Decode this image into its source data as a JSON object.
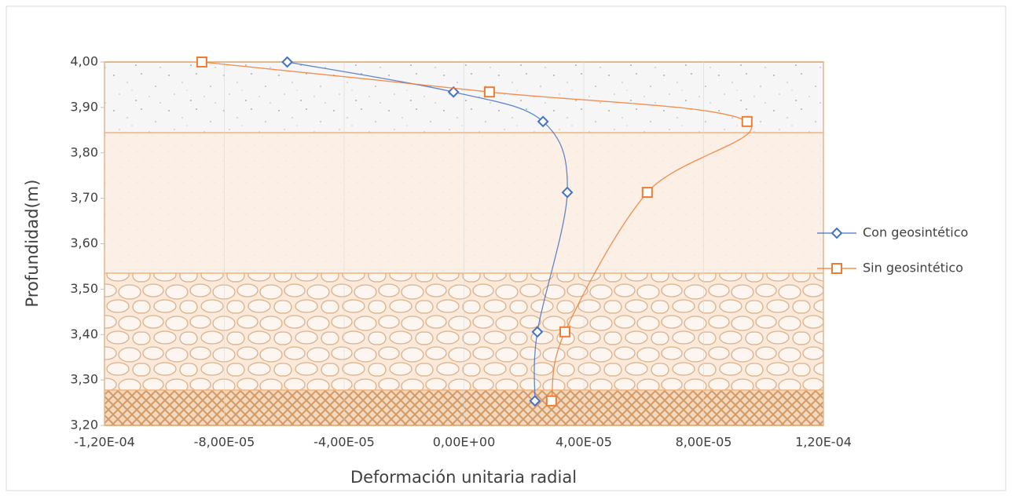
{
  "chart_data": {
    "type": "scatter",
    "x_label": "Deformación unitaria radial",
    "y_label": "Profundidad(m)",
    "xlim": [
      -0.00012,
      0.00012
    ],
    "xticks": [
      {
        "value": -0.00012,
        "label": "-1,20E-04"
      },
      {
        "value": -8e-05,
        "label": "-8,00E-05"
      },
      {
        "value": -4e-05,
        "label": "-4,00E-05"
      },
      {
        "value": 0,
        "label": "0,00E+00"
      },
      {
        "value": 4e-05,
        "label": "4,00E-05"
      },
      {
        "value": 8e-05,
        "label": "8,00E-05"
      },
      {
        "value": 0.00012,
        "label": "1,20E-04"
      }
    ],
    "ylim": [
      3.2,
      4.0
    ],
    "yticks": [
      {
        "value": 3.2,
        "label": "3,20"
      },
      {
        "value": 3.3,
        "label": "3,30"
      },
      {
        "value": 3.4,
        "label": "3,40"
      },
      {
        "value": 3.5,
        "label": "3,50"
      },
      {
        "value": 3.6,
        "label": "3,60"
      },
      {
        "value": 3.7,
        "label": "3,70"
      },
      {
        "value": 3.8,
        "label": "3,80"
      },
      {
        "value": 3.9,
        "label": "3,90"
      },
      {
        "value": 4.0,
        "label": "4,00"
      }
    ],
    "series": [
      {
        "name": "Con geosintético",
        "color": "#4472c4",
        "marker": "diamond",
        "x": [
          -5.9e-05,
          -3.5e-06,
          2.64e-05,
          3.45e-05,
          2.45e-05,
          2.37e-05
        ],
        "values": [
          4.0,
          3.934,
          3.869,
          3.713,
          3.406,
          3.254
        ]
      },
      {
        "name": "Sin geosintético",
        "color": "#ed7d31",
        "marker": "square",
        "x": [
          -8.75e-05,
          8.5e-06,
          9.45e-05,
          6.12e-05,
          3.37e-05,
          2.92e-05
        ],
        "values": [
          4.0,
          3.934,
          3.869,
          3.713,
          3.406,
          3.254
        ]
      }
    ]
  }
}
